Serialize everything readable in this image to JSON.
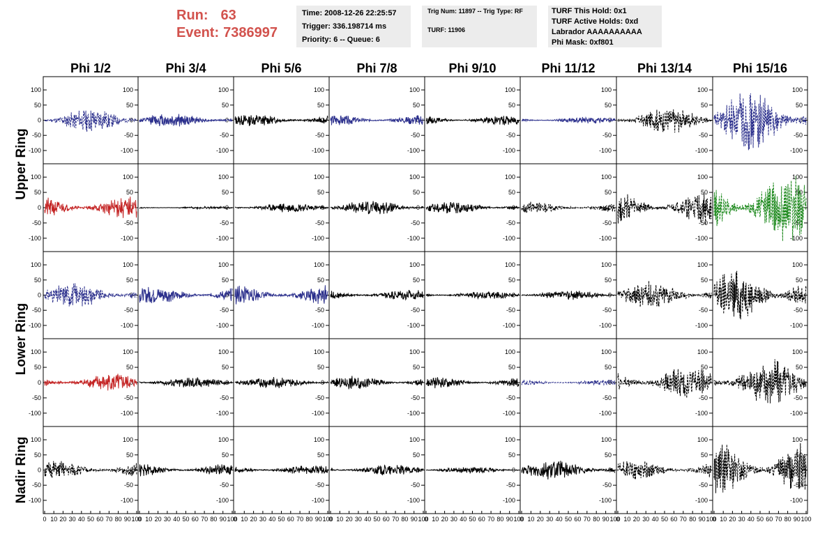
{
  "header": {
    "run_label": "Run:",
    "run_value": "63",
    "event_label": "Event:",
    "event_value": "7386997",
    "time_text": "Time: 2008-12-26 22:25:57",
    "trigger_text": "Trigger: 336.198714 ms",
    "priority_text": "Priority: 6 -- Queue: 6",
    "trig_num_text": "Trig Num: 11897 -- Trig Type: RF",
    "turf_text": "TURF: 11906",
    "turf_hold_text": "TURF This Hold: 0x1",
    "turf_active_text": "TURF Active Holds: 0xd",
    "labrador_text": "Labrador AAAAAAAAAA",
    "phi_mask_text": "Phi Mask: 0xf801"
  },
  "chart_data": {
    "type": "line",
    "columns": [
      "Phi 1/2",
      "Phi 3/4",
      "Phi 5/6",
      "Phi 7/8",
      "Phi 9/10",
      "Phi 11/12",
      "Phi 13/14",
      "Phi 15/16"
    ],
    "rows": [
      "Upper Ring",
      "Lower Ring",
      "Nadir Ring"
    ],
    "x_ticks": [
      0,
      10,
      20,
      30,
      40,
      50,
      60,
      70,
      80,
      90,
      100
    ],
    "x_tick_labels": [
      "0",
      "10",
      "20",
      "30",
      "40",
      "50",
      "60",
      "70",
      "80",
      "90",
      "100"
    ],
    "y_ticks": [
      -100,
      -50,
      0,
      50,
      100
    ],
    "y_tick_labels": [
      "-100",
      "-50",
      "0",
      "50",
      "100"
    ],
    "xlim": [
      0,
      100
    ],
    "ylim": [
      -130,
      130
    ],
    "colors": {
      "blue": "#2b2f8c",
      "black": "#000000",
      "red": "#c42424",
      "green": "#1f8a1f"
    },
    "panels": [
      {
        "row": 0,
        "col": 0,
        "color": "blue",
        "dashed": true,
        "amplitude": 30,
        "seed": 11
      },
      {
        "row": 0,
        "col": 1,
        "color": "blue",
        "dashed": false,
        "amplitude": 18,
        "seed": 12
      },
      {
        "row": 0,
        "col": 2,
        "color": "black",
        "dashed": false,
        "amplitude": 15,
        "seed": 13
      },
      {
        "row": 0,
        "col": 3,
        "color": "blue",
        "dashed": false,
        "amplitude": 14,
        "seed": 14
      },
      {
        "row": 0,
        "col": 4,
        "color": "black",
        "dashed": false,
        "amplitude": 12,
        "seed": 15
      },
      {
        "row": 0,
        "col": 5,
        "color": "blue",
        "dashed": false,
        "amplitude": 8,
        "seed": 16
      },
      {
        "row": 0,
        "col": 6,
        "color": "black",
        "dashed": true,
        "amplitude": 32,
        "seed": 17
      },
      {
        "row": 0,
        "col": 7,
        "color": "blue",
        "dashed": true,
        "amplitude": 75,
        "seed": 18
      },
      {
        "row": 1,
        "col": 0,
        "color": "red",
        "dashed": false,
        "amplitude": 28,
        "seed": 21
      },
      {
        "row": 1,
        "col": 1,
        "color": "black",
        "dashed": false,
        "amplitude": 3,
        "seed": 22
      },
      {
        "row": 1,
        "col": 2,
        "color": "black",
        "dashed": false,
        "amplitude": 12,
        "seed": 23
      },
      {
        "row": 1,
        "col": 3,
        "color": "black",
        "dashed": false,
        "amplitude": 18,
        "seed": 24
      },
      {
        "row": 1,
        "col": 4,
        "color": "black",
        "dashed": false,
        "amplitude": 15,
        "seed": 25
      },
      {
        "row": 1,
        "col": 5,
        "color": "black",
        "dashed": true,
        "amplitude": 14,
        "seed": 26
      },
      {
        "row": 1,
        "col": 6,
        "color": "black",
        "dashed": true,
        "amplitude": 40,
        "seed": 27
      },
      {
        "row": 1,
        "col": 7,
        "color": "green",
        "dashed": true,
        "amplitude": 85,
        "seed": 28
      },
      {
        "row": 2,
        "col": 0,
        "color": "blue",
        "dashed": true,
        "amplitude": 32,
        "seed": 31
      },
      {
        "row": 2,
        "col": 1,
        "color": "blue",
        "dashed": false,
        "amplitude": 22,
        "seed": 32
      },
      {
        "row": 2,
        "col": 2,
        "color": "blue",
        "dashed": false,
        "amplitude": 25,
        "seed": 33
      },
      {
        "row": 2,
        "col": 3,
        "color": "black",
        "dashed": false,
        "amplitude": 14,
        "seed": 34
      },
      {
        "row": 2,
        "col": 4,
        "color": "black",
        "dashed": false,
        "amplitude": 10,
        "seed": 35
      },
      {
        "row": 2,
        "col": 5,
        "color": "black",
        "dashed": false,
        "amplitude": 12,
        "seed": 36
      },
      {
        "row": 2,
        "col": 6,
        "color": "black",
        "dashed": true,
        "amplitude": 35,
        "seed": 37
      },
      {
        "row": 2,
        "col": 7,
        "color": "black",
        "dashed": true,
        "amplitude": 65,
        "seed": 38
      },
      {
        "row": 3,
        "col": 0,
        "color": "red",
        "dashed": false,
        "amplitude": 22,
        "seed": 41
      },
      {
        "row": 3,
        "col": 1,
        "color": "black",
        "dashed": false,
        "amplitude": 15,
        "seed": 42
      },
      {
        "row": 3,
        "col": 2,
        "color": "black",
        "dashed": false,
        "amplitude": 14,
        "seed": 43
      },
      {
        "row": 3,
        "col": 3,
        "color": "black",
        "dashed": false,
        "amplitude": 17,
        "seed": 44
      },
      {
        "row": 3,
        "col": 4,
        "color": "black",
        "dashed": false,
        "amplitude": 14,
        "seed": 45
      },
      {
        "row": 3,
        "col": 5,
        "color": "blue",
        "dashed": true,
        "amplitude": 8,
        "seed": 46
      },
      {
        "row": 3,
        "col": 6,
        "color": "black",
        "dashed": true,
        "amplitude": 42,
        "seed": 47
      },
      {
        "row": 3,
        "col": 7,
        "color": "black",
        "dashed": true,
        "amplitude": 60,
        "seed": 48
      },
      {
        "row": 4,
        "col": 0,
        "color": "black",
        "dashed": true,
        "amplitude": 22,
        "seed": 51
      },
      {
        "row": 4,
        "col": 1,
        "color": "black",
        "dashed": false,
        "amplitude": 16,
        "seed": 52
      },
      {
        "row": 4,
        "col": 2,
        "color": "black",
        "dashed": false,
        "amplitude": 12,
        "seed": 53
      },
      {
        "row": 4,
        "col": 3,
        "color": "black",
        "dashed": false,
        "amplitude": 14,
        "seed": 54
      },
      {
        "row": 4,
        "col": 4,
        "color": "black",
        "dashed": false,
        "amplitude": 8,
        "seed": 55
      },
      {
        "row": 4,
        "col": 5,
        "color": "black",
        "dashed": false,
        "amplitude": 25,
        "seed": 56
      },
      {
        "row": 4,
        "col": 6,
        "color": "black",
        "dashed": true,
        "amplitude": 25,
        "seed": 57
      },
      {
        "row": 4,
        "col": 7,
        "color": "black",
        "dashed": true,
        "amplitude": 70,
        "seed": 58
      }
    ]
  }
}
